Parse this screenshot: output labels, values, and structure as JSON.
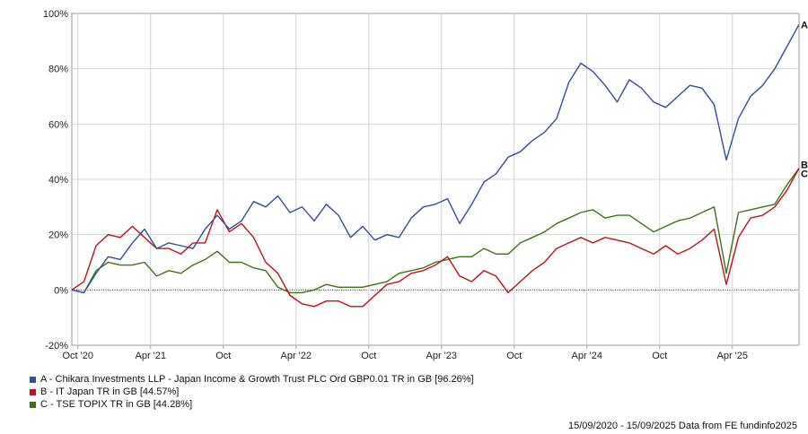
{
  "chart_data": {
    "type": "line",
    "title": "",
    "xlabel": "",
    "ylabel": "",
    "ylim": [
      -20,
      100
    ],
    "yticks": [
      "-20%",
      "0%",
      "20%",
      "40%",
      "60%",
      "80%",
      "100%"
    ],
    "ytick_values": [
      -20,
      0,
      20,
      40,
      60,
      80,
      100
    ],
    "xlim": [
      0,
      60
    ],
    "xticks": [
      {
        "label": "Oct '20",
        "pos": 0.5
      },
      {
        "label": "Apr '21",
        "pos": 6.5
      },
      {
        "label": "Oct",
        "pos": 12.5
      },
      {
        "label": "Apr '22",
        "pos": 18.5
      },
      {
        "label": "Oct",
        "pos": 24.5
      },
      {
        "label": "Apr '23",
        "pos": 30.5
      },
      {
        "label": "Oct",
        "pos": 36.5
      },
      {
        "label": "Apr '24",
        "pos": 42.5
      },
      {
        "label": "Oct",
        "pos": 48.5
      },
      {
        "label": "Apr '25",
        "pos": 54.5
      }
    ],
    "grid": true,
    "legend_position": "bottom-left",
    "x": [
      0,
      1,
      2,
      3,
      4,
      5,
      6,
      7,
      8,
      9,
      10,
      11,
      12,
      13,
      14,
      15,
      16,
      17,
      18,
      19,
      20,
      21,
      22,
      23,
      24,
      25,
      26,
      27,
      28,
      29,
      30,
      31,
      32,
      33,
      34,
      35,
      36,
      37,
      38,
      39,
      40,
      41,
      42,
      43,
      44,
      45,
      46,
      47,
      48,
      49,
      50,
      51,
      52,
      53,
      54,
      55,
      56,
      57,
      58,
      59,
      60
    ],
    "series": [
      {
        "name": "A - Chikara Investments LLP - Japan Income & Growth Trust PLC Ord GBP0.01 TR in GB [96.26%]",
        "label": "A",
        "color": "#2e4f9e",
        "values": [
          0,
          -1,
          6,
          12,
          11,
          17,
          22,
          15,
          17,
          16,
          15,
          22,
          27,
          22,
          25,
          32,
          30,
          34,
          28,
          30,
          25,
          31,
          27,
          19,
          23,
          18,
          20,
          19,
          26,
          30,
          31,
          33,
          24,
          31,
          39,
          42,
          48,
          50,
          54,
          57,
          62,
          75,
          82,
          79,
          74,
          68,
          76,
          73,
          68,
          66,
          70,
          74,
          73,
          67,
          47,
          62,
          70,
          74,
          80,
          88,
          96
        ]
      },
      {
        "name": "B - IT Japan TR in GB [44.57%]",
        "label": "B",
        "color": "#c0101a",
        "values": [
          0,
          3,
          16,
          20,
          19,
          23,
          19,
          15,
          15,
          13,
          17,
          17,
          29,
          21,
          24,
          19,
          10,
          6,
          -2,
          -5,
          -6,
          -4,
          -4,
          -6,
          -6,
          -2,
          2,
          3,
          6,
          7,
          9,
          12,
          5,
          3,
          7,
          5,
          -1,
          3,
          7,
          10,
          15,
          17,
          19,
          17,
          19,
          18,
          17,
          15,
          13,
          16,
          13,
          15,
          18,
          22,
          2,
          19,
          26,
          27,
          30,
          36,
          44
        ]
      },
      {
        "name": "C - TSE TOPIX TR in GB [44.28%]",
        "label": "C",
        "color": "#3d7318",
        "values": [
          0,
          -1,
          7,
          10,
          9,
          9,
          10,
          5,
          7,
          6,
          9,
          11,
          14,
          10,
          10,
          8,
          7,
          1,
          -1,
          -1,
          0,
          2,
          1,
          1,
          1,
          2,
          3,
          6,
          7,
          8,
          10,
          11,
          12,
          12,
          15,
          13,
          13,
          17,
          19,
          21,
          24,
          26,
          28,
          29,
          26,
          27,
          27,
          24,
          21,
          23,
          25,
          26,
          28,
          30,
          6,
          28,
          29,
          30,
          31,
          38,
          44
        ]
      }
    ]
  },
  "footer": "15/09/2020 - 15/09/2025 Data from FE fundinfo2025"
}
